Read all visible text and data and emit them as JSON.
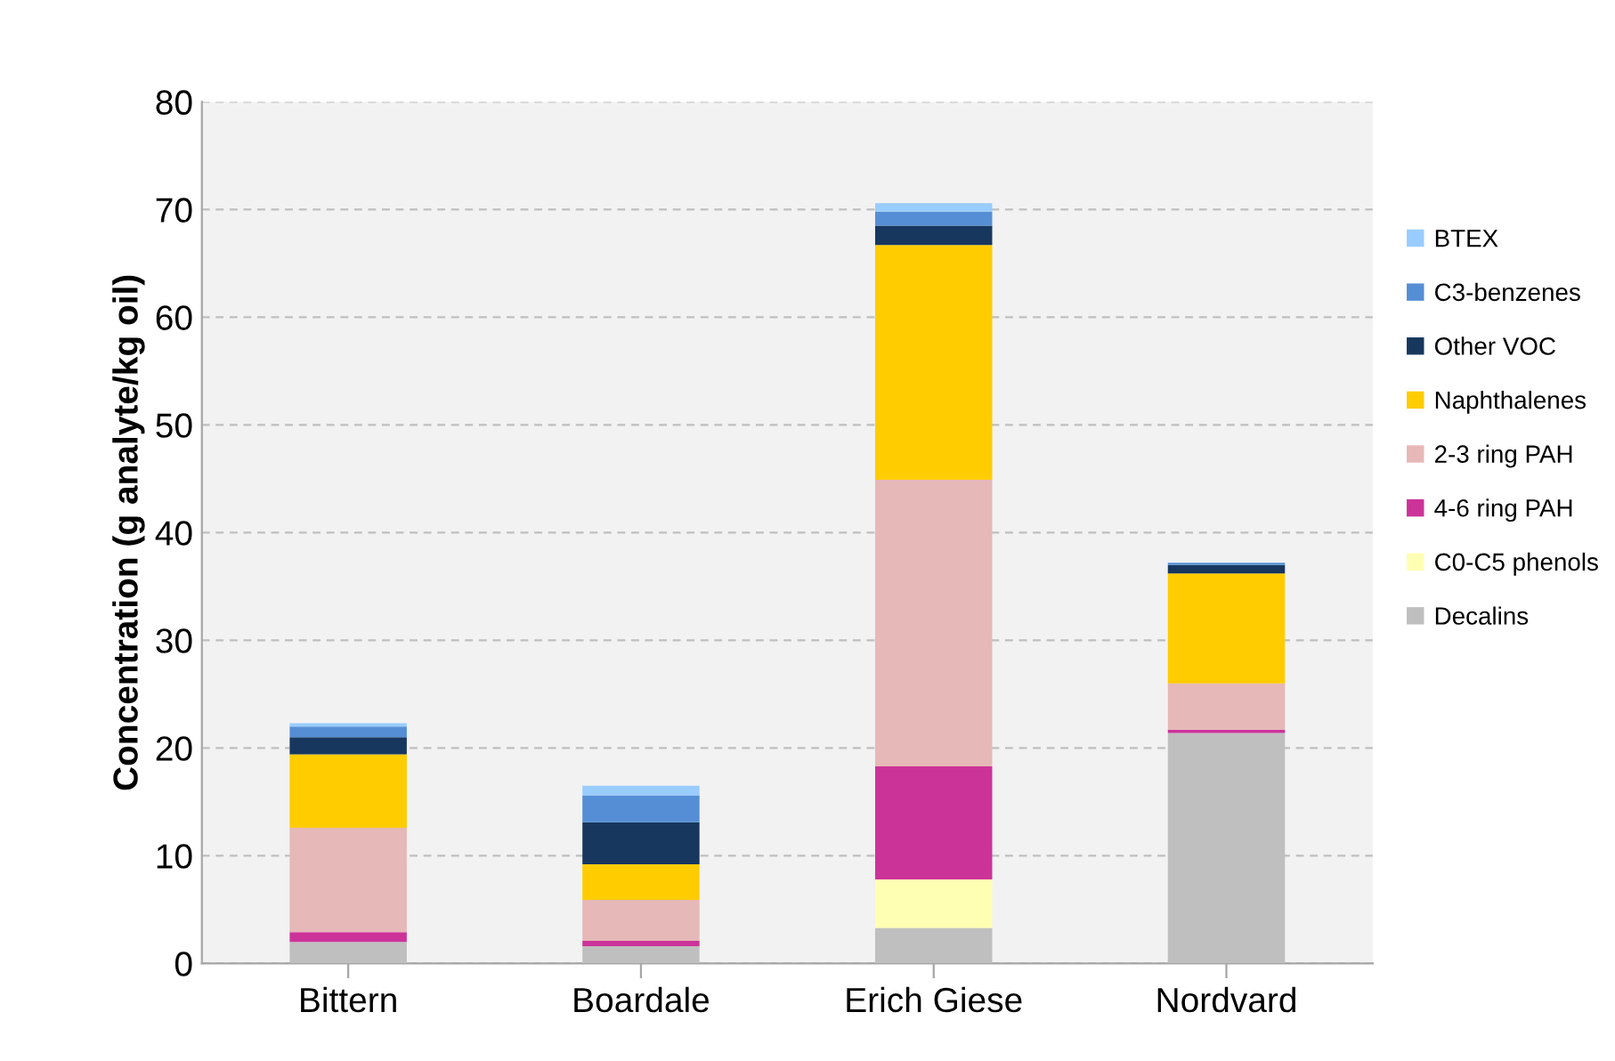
{
  "chart_data": {
    "type": "bar",
    "stacked": true,
    "ylabel": "Concentration (g analyte/kg oil)",
    "categories": [
      "Bittern",
      "Boardale",
      "Erich Giese",
      "Nordvard"
    ],
    "ylim": [
      0,
      80
    ],
    "yticks": [
      0,
      10,
      20,
      30,
      40,
      50,
      60,
      70,
      80
    ],
    "grid": "y",
    "legend": "right",
    "series": [
      {
        "name": "Decalins",
        "color": "#bfbfbf",
        "values": [
          2.0,
          1.6,
          3.3,
          21.4
        ]
      },
      {
        "name": "C0-C5 phenols",
        "color": "#ffffb3",
        "values": [
          0,
          0,
          4.5,
          0
        ]
      },
      {
        "name": "4-6 ring PAH",
        "color": "#cc3399",
        "values": [
          0.9,
          0.5,
          10.5,
          0.3
        ]
      },
      {
        "name": "2-3 ring PAH",
        "color": "#e6b8b7",
        "values": [
          9.7,
          3.8,
          26.6,
          4.3
        ]
      },
      {
        "name": "Naphthalenes",
        "color": "#ffcc00",
        "values": [
          6.8,
          3.3,
          21.8,
          10.2
        ]
      },
      {
        "name": "Other VOC",
        "color": "#17375e",
        "values": [
          1.6,
          3.9,
          1.8,
          0.8
        ]
      },
      {
        "name": "C3-benzenes",
        "color": "#558ed5",
        "values": [
          1.0,
          2.5,
          1.3,
          0.2
        ]
      },
      {
        "name": "BTEX",
        "color": "#99ccff",
        "values": [
          0.3,
          0.9,
          0.8,
          null
        ]
      }
    ]
  }
}
